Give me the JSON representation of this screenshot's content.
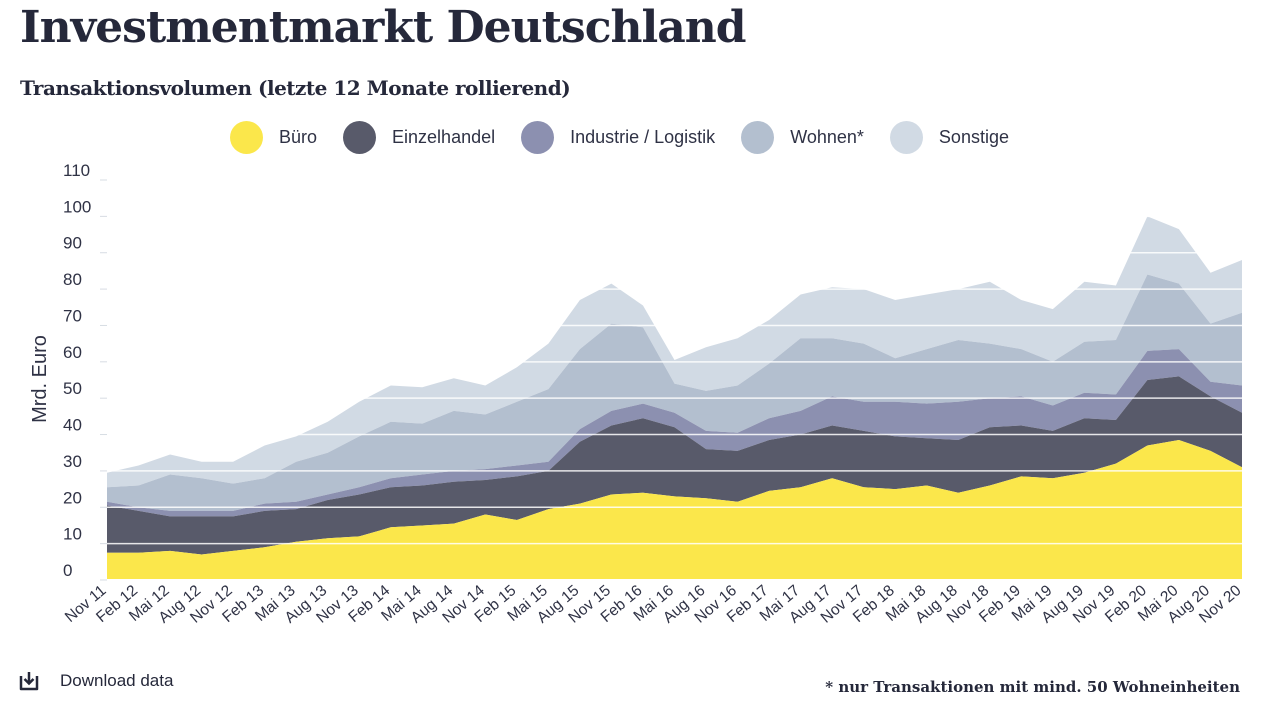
{
  "header": {
    "title": "Investmentmarkt Deutschland",
    "subtitle": "Transaktionsvolumen (letzte 12 Monate rollierend)"
  },
  "footer": {
    "download_label": "Download data",
    "footnote": "* nur Transaktionen mit mind. 50 Wohneinheiten"
  },
  "chart_data": {
    "type": "area",
    "stacked": true,
    "title": "Transaktionsvolumen (letzte 12 Monate rollierend)",
    "ylabel": "Mrd. Euro",
    "xlabel": "",
    "ylim": [
      0,
      110
    ],
    "yticks": [
      0,
      10,
      20,
      30,
      40,
      50,
      60,
      70,
      80,
      90,
      100,
      110
    ],
    "grid": true,
    "legend_position": "top",
    "categories": [
      "Nov 11",
      "Feb 12",
      "Mai 12",
      "Aug 12",
      "Nov 12",
      "Feb 13",
      "Mai 13",
      "Aug 13",
      "Nov 13",
      "Feb 14",
      "Mai 14",
      "Aug 14",
      "Nov 14",
      "Feb 15",
      "Mai 15",
      "Aug 15",
      "Nov 15",
      "Feb 16",
      "Mai 16",
      "Aug 16",
      "Nov 16",
      "Feb 17",
      "Mai 17",
      "Aug 17",
      "Nov 17",
      "Feb 18",
      "Mai 18",
      "Aug 18",
      "Nov 18",
      "Feb 19",
      "Mai 19",
      "Aug 19",
      "Nov 19",
      "Feb 20",
      "Mai 20",
      "Aug 20",
      "Nov 20"
    ],
    "series": [
      {
        "name": "Büro",
        "color": "#fbe74b",
        "values": [
          7.5,
          7.5,
          8,
          7,
          8,
          9,
          10.5,
          11.5,
          12,
          14.5,
          15,
          15.5,
          18,
          16.5,
          19.5,
          21,
          23.5,
          24,
          23,
          22.5,
          21.5,
          24.5,
          25.5,
          28,
          25.5,
          25,
          26,
          24,
          26,
          28.5,
          28,
          29.5,
          32,
          37,
          38.5,
          35.5,
          31
        ]
      },
      {
        "name": "Einzelhandel",
        "color": "#585a6a",
        "values": [
          13,
          11.5,
          9.5,
          10.5,
          9.5,
          10,
          9,
          10.5,
          11.5,
          11,
          11,
          11.5,
          9.5,
          12,
          10.5,
          17,
          19,
          20.5,
          19,
          13.5,
          14,
          14,
          14.5,
          14.5,
          15.5,
          14.5,
          13,
          14.5,
          16,
          14,
          13,
          15,
          12,
          18,
          17.5,
          15,
          15
        ]
      },
      {
        "name": "Industrie / Logistik",
        "color": "#8c90b0",
        "values": [
          1,
          1,
          1.5,
          1.5,
          1.5,
          2,
          2,
          1.5,
          2,
          2.5,
          3,
          3,
          3,
          3,
          2.5,
          3.5,
          4,
          4,
          4,
          5,
          5,
          6,
          6.5,
          8,
          8,
          9.5,
          9.5,
          10.5,
          8,
          8,
          7,
          7,
          7,
          8,
          7.5,
          4,
          7.5
        ]
      },
      {
        "name": "Wohnen*",
        "color": "#b3bfcf",
        "values": [
          4,
          6,
          10,
          9,
          7.5,
          7,
          11,
          11.5,
          14,
          15.5,
          14,
          16.5,
          15,
          17.5,
          20,
          22,
          24,
          21,
          8,
          11,
          13,
          15,
          20,
          16,
          16,
          12,
          15,
          17,
          15,
          13,
          12,
          14,
          15,
          21,
          18,
          16,
          20
        ]
      },
      {
        "name": "Sonstige",
        "color": "#d1dae4",
        "values": [
          4,
          5.5,
          5.5,
          4.5,
          6,
          9,
          7,
          8.5,
          9.5,
          10,
          10,
          9,
          8,
          9.5,
          12.5,
          13.5,
          11,
          6,
          6.5,
          12,
          13,
          12,
          12,
          14,
          15,
          16,
          15,
          14,
          17,
          13.5,
          14.5,
          16.5,
          15,
          16,
          15,
          14,
          14.5
        ]
      }
    ]
  }
}
